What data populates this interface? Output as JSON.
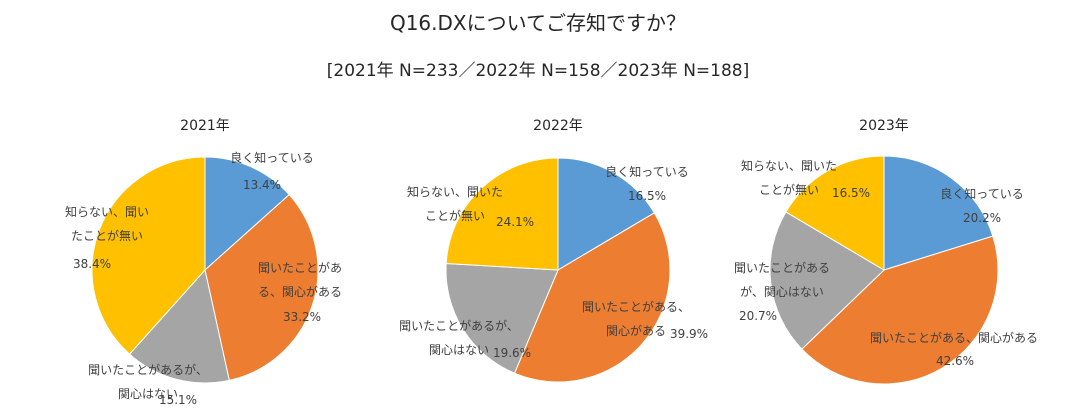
{
  "header": {
    "title": "Q16.DXについてご存知ですか？",
    "subtitle": "[2021年 N=233／2022年 N=158／2023年 N=188]"
  },
  "colors": {
    "良く知っている": "#5B9BD5",
    "聞いたことがある、関心がある": "#ED7D31",
    "聞いたことがあるが、関心はない": "#A5A5A5",
    "知らない、聞いたことが無い": "#FFC000"
  },
  "chart_data": [
    {
      "type": "pie",
      "title": "2021年",
      "slices": [
        {
          "label_lines": [
            "良く知っている"
          ],
          "value": 13.4,
          "value_text": "13.4%"
        },
        {
          "label_lines": [
            "聞いたことがあ",
            "る、関心がある"
          ],
          "value": 33.2,
          "value_text": "33.2%"
        },
        {
          "label_lines": [
            "聞いたことがあるが、",
            "関心はない"
          ],
          "value": 15.1,
          "value_text": "15.1%"
        },
        {
          "label_lines": [
            "知らない、聞い",
            "たことが無い"
          ],
          "value": 38.4,
          "value_text": "38.4%"
        }
      ]
    },
    {
      "type": "pie",
      "title": "2022年",
      "slices": [
        {
          "label_lines": [
            "良く知っている"
          ],
          "value": 16.5,
          "value_text": "16.5%"
        },
        {
          "label_lines": [
            "聞いたことがある、",
            "関心がある"
          ],
          "value": 39.9,
          "value_text": "39.9%"
        },
        {
          "label_lines": [
            "聞いたことがあるが、",
            "関心はない"
          ],
          "value": 19.6,
          "value_text": "19.6%"
        },
        {
          "label_lines": [
            "知らない、聞いた",
            "ことが無い"
          ],
          "value": 24.1,
          "value_text": "24.1%"
        }
      ]
    },
    {
      "type": "pie",
      "title": "2023年",
      "slices": [
        {
          "label_lines": [
            "良く知っている"
          ],
          "value": 20.2,
          "value_text": "20.2%"
        },
        {
          "label_lines": [
            "聞いたことがある、関心がある"
          ],
          "value": 42.6,
          "value_text": "42.6%"
        },
        {
          "label_lines": [
            "聞いたことがある",
            "が、関心はない"
          ],
          "value": 20.7,
          "value_text": "20.7%"
        },
        {
          "label_lines": [
            "知らない、聞いた",
            "ことが無い"
          ],
          "value": 16.5,
          "value_text": "16.5%"
        }
      ]
    }
  ]
}
